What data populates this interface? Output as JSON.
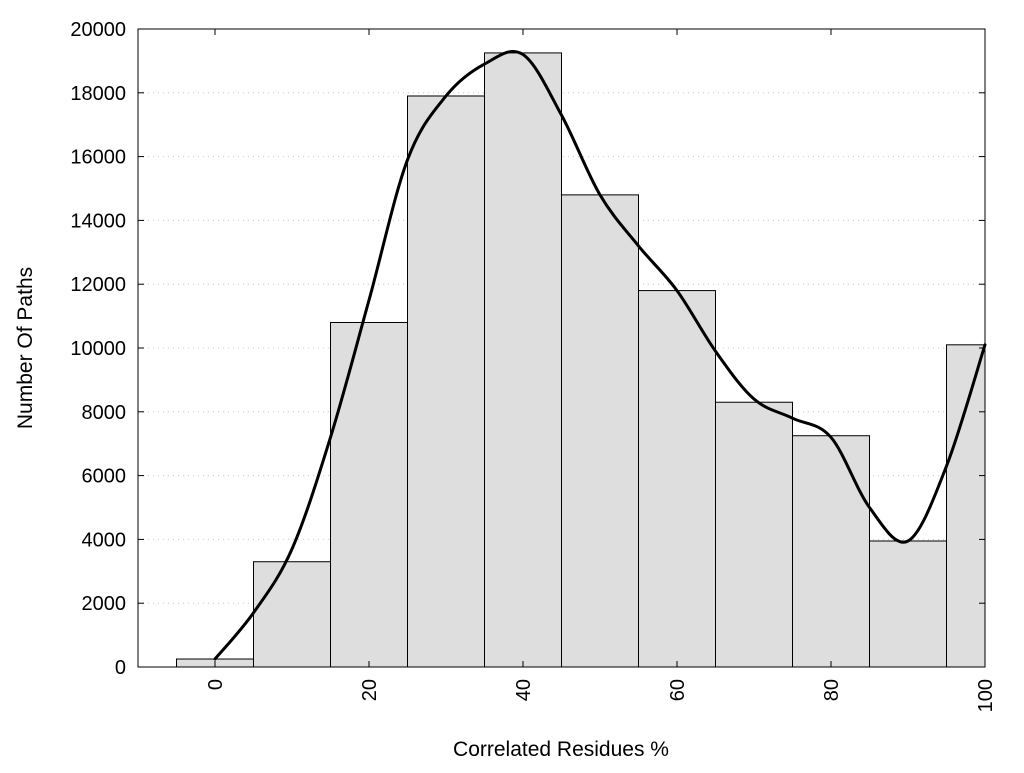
{
  "chart_data": {
    "type": "bar",
    "xlabel": "Correlated Residues %",
    "ylabel": "Number Of Paths",
    "xlim": [
      -10,
      100
    ],
    "ylim": [
      0,
      20000
    ],
    "x_ticks": [
      "0",
      "20",
      "40",
      "60",
      "80",
      "100"
    ],
    "x_tick_values": [
      0,
      20,
      40,
      60,
      80,
      100
    ],
    "y_ticks": [
      "0",
      "2000",
      "4000",
      "6000",
      "8000",
      "10000",
      "12000",
      "14000",
      "16000",
      "18000",
      "20000"
    ],
    "y_tick_values": [
      0,
      2000,
      4000,
      6000,
      8000,
      10000,
      12000,
      14000,
      16000,
      18000,
      20000
    ],
    "grid": "horizontal dotted",
    "bin_width": 10,
    "bins": [
      {
        "center": 0,
        "value": 250
      },
      {
        "center": 10,
        "value": 3300
      },
      {
        "center": 20,
        "value": 10800
      },
      {
        "center": 30,
        "value": 17900
      },
      {
        "center": 40,
        "value": 19250
      },
      {
        "center": 50,
        "value": 14800
      },
      {
        "center": 60,
        "value": 11800
      },
      {
        "center": 70,
        "value": 8300
      },
      {
        "center": 80,
        "value": 7250
      },
      {
        "center": 90,
        "value": 3950
      },
      {
        "center": 100,
        "value": 10100
      }
    ],
    "curve": {
      "x": [
        0,
        5,
        10,
        15,
        20,
        25,
        30,
        35,
        40,
        45,
        50,
        55,
        60,
        65,
        70,
        75,
        80,
        85,
        90,
        95,
        100
      ],
      "y": [
        250,
        1700,
        3700,
        7200,
        11500,
        15900,
        17900,
        18900,
        19200,
        17300,
        14800,
        13200,
        11800,
        9900,
        8400,
        7800,
        7200,
        5000,
        3950,
        6300,
        10100
      ]
    },
    "bar_color": "#dedede",
    "edge_color": "#000000",
    "curve_color": "#000000"
  }
}
